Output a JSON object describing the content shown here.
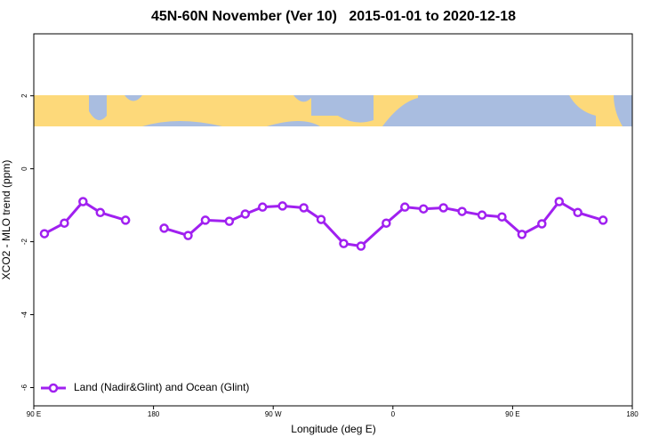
{
  "chart_data": {
    "type": "line",
    "title": "45N-60N November (Ver 10)   2015-01-01 to 2020-12-18",
    "xlabel": "Longitude (deg E)",
    "ylabel": "XCO2 - MLO trend (ppm)",
    "x": [
      98,
      113,
      127,
      140,
      159,
      null,
      188,
      206,
      219,
      237,
      249,
      262,
      277,
      293,
      306,
      323,
      336,
      355,
      369,
      383,
      398,
      412,
      427,
      442,
      457,
      472,
      485,
      499,
      518
    ],
    "series": [
      {
        "name": "Land (Nadir&Glint) and Ocean (Glint)",
        "color": "#a020f0",
        "values": [
          -1.78,
          -1.49,
          -0.9,
          -1.2,
          -1.41,
          null,
          -1.63,
          -1.83,
          -1.41,
          -1.44,
          -1.24,
          -1.05,
          -1.02,
          -1.07,
          -1.39,
          -2.05,
          -2.12,
          -1.49,
          -1.05,
          -1.1,
          -1.07,
          -1.17,
          -1.27,
          -1.32,
          -1.8,
          -1.51,
          -0.9,
          -1.2,
          -1.41
        ]
      }
    ],
    "xlim": [
      90,
      540
    ],
    "xticks": [
      {
        "value": 90,
        "label": "90 E"
      },
      180,
      {
        "value": 270,
        "label": "90 W"
      },
      {
        "value": 360,
        "label": "0"
      },
      {
        "value": 450,
        "label": "90 E"
      },
      {
        "value": 540,
        "label": "180"
      }
    ],
    "ylim": [
      -6.5,
      3.7
    ],
    "yticks": [
      -6,
      -4,
      -2,
      0,
      2
    ],
    "legend": "bottom-left"
  }
}
